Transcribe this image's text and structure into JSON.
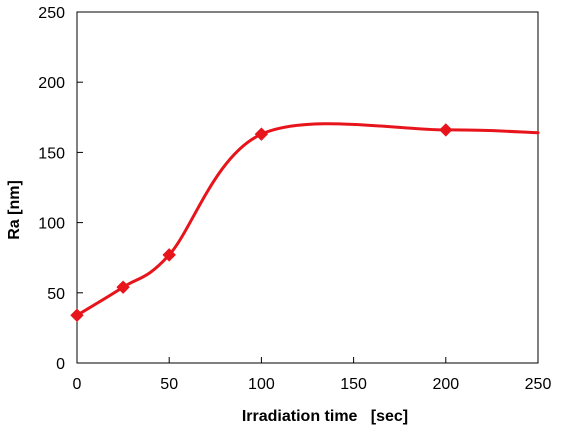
{
  "chart_data": {
    "type": "line",
    "title": "",
    "xlabel": "Irradiation time   [sec]",
    "ylabel": "Ra [nm]",
    "xlim": [
      0,
      250
    ],
    "ylim": [
      0,
      250
    ],
    "x_ticks": [
      0,
      50,
      100,
      150,
      200,
      250
    ],
    "y_ticks": [
      0,
      50,
      100,
      150,
      200,
      250
    ],
    "x_tick_labels": [
      "0",
      "50",
      "100",
      "150",
      "200",
      "250"
    ],
    "y_tick_labels": [
      "0",
      "50",
      "100",
      "150",
      "200",
      "250"
    ],
    "grid": false,
    "legend": "none",
    "smooth": true,
    "series": [
      {
        "color": "#e8141c",
        "marker": "diamond",
        "x": [
          0,
          25,
          50,
          100,
          200
        ],
        "y": [
          34,
          54,
          77,
          163,
          166
        ]
      }
    ],
    "curve_extension": {
      "x": 250,
      "y": 164
    }
  }
}
